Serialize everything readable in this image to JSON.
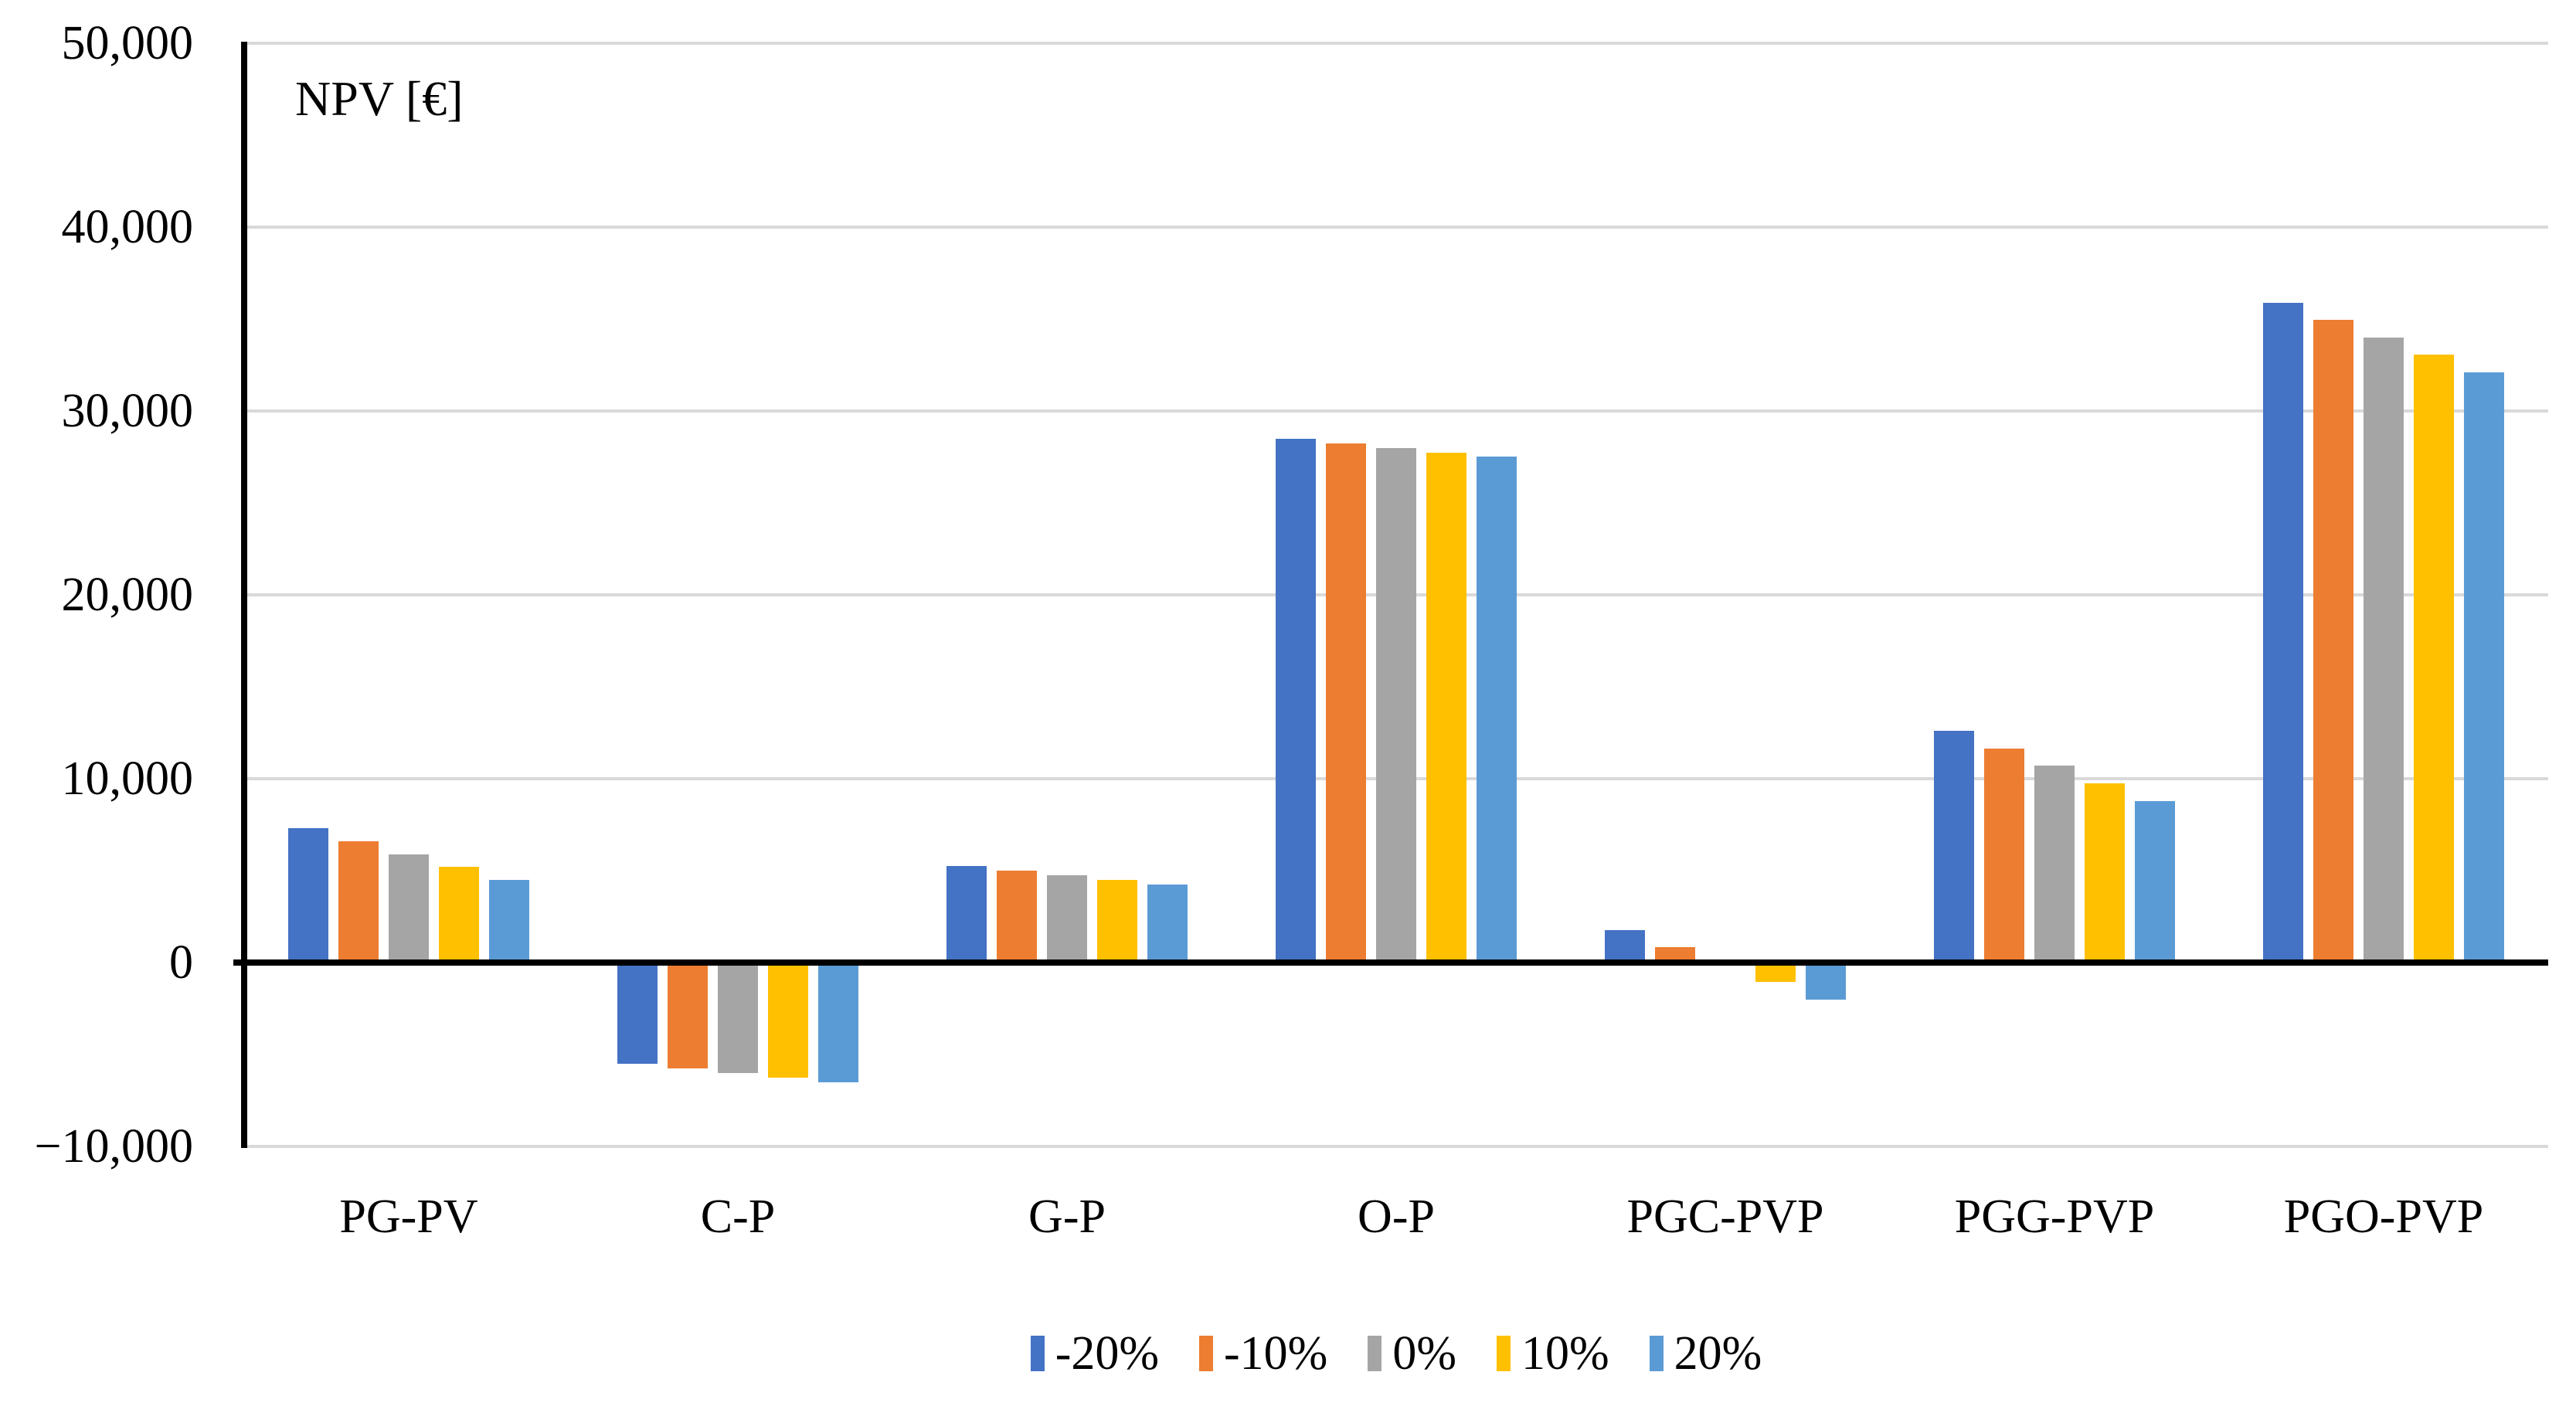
{
  "chart_data": {
    "type": "bar",
    "title": "NPV [€]",
    "xlabel": "",
    "ylabel": "NPV [€]",
    "grid": true,
    "legend_position": "bottom",
    "y_axis": {
      "min": -10000,
      "max": 50000,
      "tick_step": 10000,
      "tick_labels_top_to_bottom": [
        "50,000",
        "40,000",
        "30,000",
        "20,000",
        "10,000",
        "0",
        "−10,000"
      ]
    },
    "categories": [
      "PG-PV",
      "C-P",
      "G-P",
      "O-P",
      "PGC-PVP",
      "PGG-PVP",
      "PGO-PVP"
    ],
    "series": [
      {
        "name": "-20%",
        "color": "#4472C4",
        "values": [
          7300,
          -5500,
          5250,
          28500,
          1750,
          12600,
          35900
        ]
      },
      {
        "name": "-10%",
        "color": "#ED7D31",
        "values": [
          6600,
          -5750,
          5000,
          28250,
          850,
          11650,
          34950
        ]
      },
      {
        "name": "0%",
        "color": "#A5A5A5",
        "values": [
          5900,
          -6000,
          4750,
          28000,
          -100,
          10700,
          34000
        ]
      },
      {
        "name": "10%",
        "color": "#FFC000",
        "values": [
          5200,
          -6250,
          4500,
          27750,
          -1050,
          9750,
          33050
        ]
      },
      {
        "name": "20%",
        "color": "#5B9BD5",
        "values": [
          4500,
          -6500,
          4250,
          27500,
          -2000,
          8800,
          32100
        ]
      }
    ],
    "style": {
      "gridline_color": "#d9d9d9",
      "axis_color": "#000000",
      "background": "#ffffff"
    }
  }
}
